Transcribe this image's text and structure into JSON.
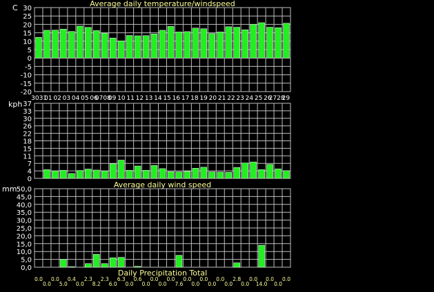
{
  "colors": {
    "background": "#000000",
    "bar_fill": "#22ee22",
    "bar_stroke": "#ffffff",
    "grid": "#c0c0c0",
    "axis_text": "#ffffff",
    "title_text": "#ffff99"
  },
  "chart_data": [
    {
      "type": "bar",
      "title": "Average daily temperature/windspeed",
      "ylabel": "C",
      "ylim": [
        -20,
        30
      ],
      "yticks": [
        "30",
        "25",
        "20",
        "15",
        "10",
        "5",
        "0",
        "-5",
        "-10",
        "-15",
        "-20"
      ],
      "categories": [
        "30",
        "31",
        "01",
        "02",
        "03",
        "04",
        "05",
        "06",
        "07",
        "08",
        "09",
        "10",
        "11",
        "12",
        "13",
        "14",
        "15",
        "16",
        "17",
        "18",
        "19",
        "20",
        "21",
        "22",
        "23",
        "24",
        "25",
        "26",
        "27",
        "28",
        "29"
      ],
      "xlabels": [
        "3031",
        "01",
        "02",
        "03",
        "04",
        "05",
        "06",
        "0708",
        "09",
        "10",
        "11",
        "12",
        "13",
        "14",
        "15",
        "16",
        "17",
        "18",
        "19",
        "20",
        "21",
        "22",
        "23",
        "24",
        "25",
        "26",
        "2728",
        "29"
      ],
      "values": [
        12.3,
        16.5,
        16.6,
        17.2,
        15.8,
        19.0,
        18.2,
        16.3,
        14.8,
        11.9,
        10.2,
        13.4,
        13.2,
        13.3,
        14.3,
        16.5,
        18.8,
        15.5,
        15.7,
        17.8,
        17.4,
        14.5,
        15.5,
        18.6,
        18.3,
        16.8,
        20.0,
        21.0,
        18.3,
        18.0,
        20.7
      ],
      "grid": true
    },
    {
      "type": "bar",
      "title": "Average daily wind speed",
      "ylabel": "kph",
      "ylim": [
        0,
        37
      ],
      "yticks": [
        "37",
        "33",
        "30",
        "26",
        "22",
        "18",
        "15",
        "11",
        "7",
        "4",
        "0"
      ],
      "values": [
        0,
        4.3,
        3.7,
        4.0,
        2.4,
        3.9,
        4.6,
        4.1,
        3.7,
        7.2,
        9.0,
        4.0,
        6.1,
        4.0,
        6.4,
        4.8,
        3.3,
        3.2,
        3.5,
        5.0,
        5.5,
        3.2,
        3.1,
        3.0,
        5.4,
        7.6,
        8.1,
        4.3,
        6.9,
        4.7,
        3.8
      ],
      "grid": true
    },
    {
      "type": "bar",
      "title": "Daily Precipitation Total",
      "ylabel": "mm",
      "ylim": [
        0,
        50
      ],
      "yticks": [
        "50,0",
        "45,0",
        "40,0",
        "35,0",
        "30,0",
        "25,0",
        "20,0",
        "15,0",
        "10,0",
        "5,0",
        "0,0"
      ],
      "values": [
        0.0,
        0.0,
        0.0,
        5.0,
        0.4,
        0.0,
        2.3,
        8.2,
        2.3,
        6.0,
        6.3,
        0.0,
        0.6,
        0.0,
        0.0,
        0.0,
        0.0,
        7.6,
        0.0,
        0.0,
        0.0,
        0.0,
        0.0,
        0.0,
        2.8,
        0.0,
        0.0,
        14.0,
        0.0,
        0.0,
        0.0
      ],
      "value_labels": [
        "0.0",
        "0.0",
        "0.0",
        "5.0",
        "0.4",
        "0.0",
        "2.3",
        "8.2",
        "2.3",
        "6.0",
        "6.3",
        "0.0",
        "0.6",
        "0.0",
        "0.0",
        "0.0",
        "0.0",
        "7.6",
        "0.0",
        "0.0",
        "0.0",
        "0.0",
        "0.0",
        "0.0",
        "2.8",
        "0.0",
        "0.0",
        "14.0",
        "0.0",
        "0.0",
        "0.0"
      ],
      "grid": true
    }
  ]
}
